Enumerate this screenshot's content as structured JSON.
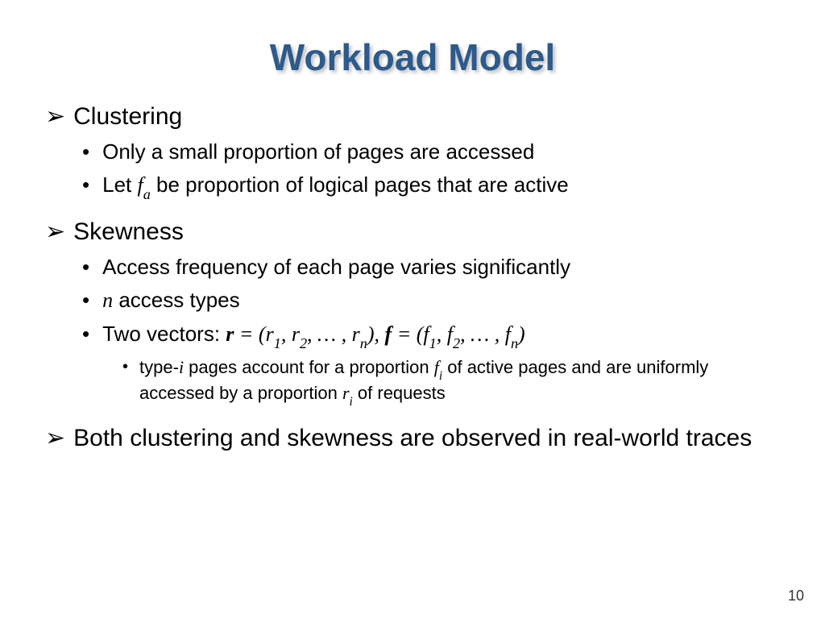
{
  "slide": {
    "title": "Workload Model",
    "title_color": "#2d5a8a",
    "title_fontsize": 46,
    "page_number": "10",
    "background_color": "#ffffff"
  },
  "bullets": {
    "clustering": {
      "heading": "Clustering",
      "sub1": "Only a small proportion of pages are accessed",
      "sub2_prefix": "Let ",
      "sub2_var": "f",
      "sub2_sub": "a",
      "sub2_suffix": " be proportion of logical pages that are active"
    },
    "skewness": {
      "heading": "Skewness",
      "sub1": "Access frequency of each page varies significantly",
      "sub2_var": "n",
      "sub2_suffix": " access types",
      "sub3_prefix": "Two vectors: ",
      "sub3_math_r": "r",
      "sub3_eq1_open": " = (",
      "sub3_r1": "r",
      "sub3_r1s": "1",
      "sub3_c1": ", ",
      "sub3_r2": "r",
      "sub3_r2s": "2",
      "sub3_c2": ", … , ",
      "sub3_rn": "r",
      "sub3_rns": "n",
      "sub3_eq1_close": "), ",
      "sub3_math_f": "f",
      "sub3_eq2_open": " = (",
      "sub3_f1": "f",
      "sub3_f1s": "1",
      "sub3_c3": ", ",
      "sub3_f2": "f",
      "sub3_f2s": "2",
      "sub3_c4": ", … , ",
      "sub3_fn": "f",
      "sub3_fns": "n",
      "sub3_eq2_close": ")",
      "subsub_pre": "type-",
      "subsub_i": "i",
      "subsub_mid1": " pages account for a proportion ",
      "subsub_fi": "f",
      "subsub_fis": "i",
      "subsub_mid2": " of active pages and are uniformly accessed by a proportion ",
      "subsub_ri": "r",
      "subsub_ris": "i",
      "subsub_end": " of requests"
    },
    "both": {
      "text": "Both clustering and skewness are observed in real-world traces"
    }
  },
  "style": {
    "body_fontsize_l1": 30,
    "body_fontsize_l2": 26,
    "body_fontsize_l3": 22,
    "text_color": "#000000",
    "arrow_glyph": "➢",
    "dot_glyph": "•"
  }
}
